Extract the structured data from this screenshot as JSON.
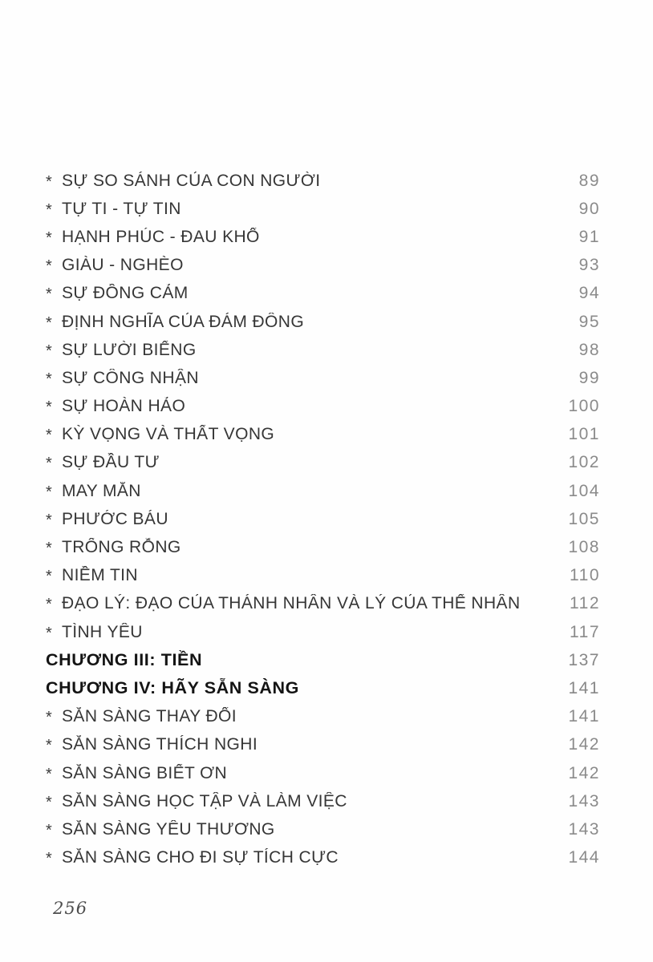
{
  "colors": {
    "item_text": "#363636",
    "chapter_text": "#141414",
    "page_number": "#8b8b8b",
    "paper": "#fefefe"
  },
  "toc": {
    "entries": [
      {
        "kind": "item",
        "marker": "*",
        "title": "SỰ SO SÁNH CỦA CON NGƯỜI",
        "page": "89"
      },
      {
        "kind": "item",
        "marker": "*",
        "title": "TỰ TI - TỰ TIN",
        "page": "90"
      },
      {
        "kind": "item",
        "marker": "*",
        "title": "HẠNH PHÚC - ĐAU KHỔ",
        "page": "91"
      },
      {
        "kind": "item",
        "marker": "*",
        "title": "GIÀU - NGHÈO",
        "page": "93"
      },
      {
        "kind": "item",
        "marker": "*",
        "title": "SỰ ĐỒNG CẢM",
        "page": "94"
      },
      {
        "kind": "item",
        "marker": "*",
        "title": "ĐỊNH NGHĨA CỦA ĐÁM ĐÔNG",
        "page": "95"
      },
      {
        "kind": "item",
        "marker": "*",
        "title": "SỰ LƯỜI BIẾNG",
        "page": "98"
      },
      {
        "kind": "item",
        "marker": "*",
        "title": "SỰ CÔNG NHẬN",
        "page": "99"
      },
      {
        "kind": "item",
        "marker": "*",
        "title": "SỰ HOÀN HẢO",
        "page": "100"
      },
      {
        "kind": "item",
        "marker": "*",
        "title": "KỲ VỌNG VÀ THẤT VỌNG",
        "page": "101"
      },
      {
        "kind": "item",
        "marker": "*",
        "title": "SỰ ĐẦU TƯ",
        "page": "102"
      },
      {
        "kind": "item",
        "marker": "*",
        "title": "MAY MẮN",
        "page": "104"
      },
      {
        "kind": "item",
        "marker": "*",
        "title": "PHƯỚC BÁU",
        "page": "105"
      },
      {
        "kind": "item",
        "marker": "*",
        "title": "TRỐNG RỖNG",
        "page": "108"
      },
      {
        "kind": "item",
        "marker": "*",
        "title": "NIỀM TIN",
        "page": "110"
      },
      {
        "kind": "item",
        "marker": "*",
        "title": "ĐẠO LÝ: ĐẠO CỦA THÁNH NHÂN VÀ LÝ CỦA THẾ NHÂN",
        "page": "112"
      },
      {
        "kind": "item",
        "marker": "*",
        "title": "TÌNH YÊU",
        "page": "117"
      },
      {
        "kind": "chapter",
        "marker": "",
        "title": "CHƯƠNG III: TIỀN",
        "page": "137"
      },
      {
        "kind": "chapter",
        "marker": "",
        "title": "CHƯƠNG IV: HÃY SẴN SÀNG",
        "page": "141"
      },
      {
        "kind": "item",
        "marker": "*",
        "title": "SẴN SÀNG THAY ĐỔI",
        "page": "141"
      },
      {
        "kind": "item",
        "marker": "*",
        "title": "SẴN SÀNG THÍCH NGHI",
        "page": "142"
      },
      {
        "kind": "item",
        "marker": "*",
        "title": "SẴN SÀNG BIẾT ƠN",
        "page": "142"
      },
      {
        "kind": "item",
        "marker": "*",
        "title": "SẴN SÀNG HỌC TẬP VÀ LÀM VIỆC",
        "page": "143"
      },
      {
        "kind": "item",
        "marker": "*",
        "title": "SẴN SÀNG YÊU THƯƠNG",
        "page": "143"
      },
      {
        "kind": "item",
        "marker": "*",
        "title": "SẴN SÀNG CHO ĐI SỰ TÍCH CỰC",
        "page": "144"
      }
    ]
  },
  "footer": {
    "page_number": "256"
  }
}
